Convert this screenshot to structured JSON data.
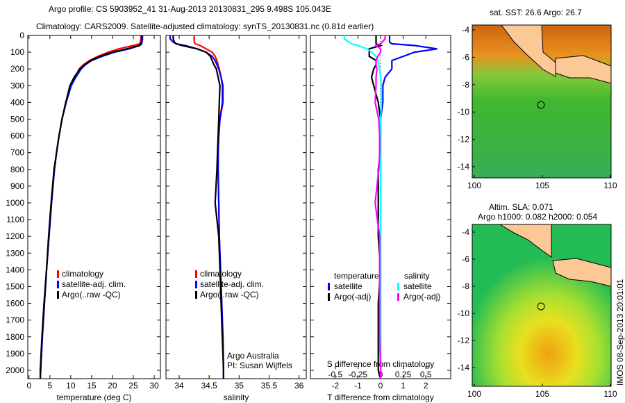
{
  "title_line1": "Argo profile: CS 5903952_41 31-Aug-2013 20130831_295 9.498S 105.043E",
  "title_line2": "Climatology: CARS2009. Satellite-adjusted climatology: synTS_20130831.nc (0.81d earlier)",
  "chart_data": [
    {
      "type": "line",
      "xlabel": "temperature (deg C)",
      "xlim": [
        -0.3,
        31.5
      ],
      "xticks": [
        "0",
        "5",
        "10",
        "15",
        "20",
        "25",
        "30"
      ],
      "ylim": [
        0,
        2050
      ],
      "yticks": [
        "0",
        "100",
        "200",
        "300",
        "400",
        "500",
        "600",
        "700",
        "800",
        "900",
        "1000",
        "1100",
        "1200",
        "1300",
        "1400",
        "1500",
        "1600",
        "1700",
        "1800",
        "1900",
        "2000"
      ],
      "depth": [
        0,
        20,
        40,
        50,
        60,
        80,
        100,
        125,
        150,
        175,
        200,
        250,
        300,
        400,
        500,
        600,
        700,
        800,
        1000,
        1200,
        1400,
        1600,
        1800,
        2000,
        2050
      ],
      "series": [
        {
          "name": "climatology",
          "color": "#ff0000",
          "values": [
            26.8,
            26.8,
            26.7,
            26.5,
            25,
            21.5,
            19,
            16.5,
            14.5,
            13,
            12,
            11,
            10,
            8.8,
            7.9,
            7.2,
            6.6,
            6.1,
            5.4,
            4.8,
            4.2,
            3.7,
            3.2,
            2.8,
            2.7
          ]
        },
        {
          "name": "satellite-adj. clim.",
          "color": "#0000ff",
          "values": [
            27.2,
            27.2,
            27.1,
            27,
            26.5,
            24,
            20.5,
            17.5,
            15,
            13.5,
            12.5,
            11.2,
            10.1,
            8.9,
            7.9,
            7.2,
            6.6,
            6.1,
            5.4,
            4.8,
            4.2,
            3.7,
            3.2,
            2.8,
            2.7
          ]
        },
        {
          "name": "Argo(..raw -QC)",
          "color": "#000000",
          "values": [
            27,
            27,
            26.9,
            26.8,
            26.5,
            23.5,
            20,
            17,
            14.8,
            13.3,
            12.2,
            10.8,
            9.8,
            8.8,
            7.9,
            7.2,
            6.6,
            6.0,
            5.3,
            4.7,
            4.2,
            3.6,
            3.1,
            2.7,
            2.7
          ]
        }
      ]
    },
    {
      "type": "line",
      "xlabel": "salinity",
      "xlim": [
        33.78,
        36.12
      ],
      "xticks": [
        "34",
        "34.5",
        "35",
        "35.5",
        "36"
      ],
      "ylim": [
        0,
        2050
      ],
      "annotation": [
        "Argo Australia",
        "PI: Susan Wijffels"
      ],
      "series": [
        {
          "name": "climatology",
          "color": "#ff0000",
          "values": [
            34.25,
            34.25,
            34.25,
            34.27,
            34.35,
            34.45,
            34.55,
            34.6,
            34.63,
            34.65,
            34.67,
            34.7,
            34.72,
            34.72,
            34.68,
            34.66,
            34.65,
            34.65,
            34.66,
            34.67,
            34.69,
            34.71,
            34.73,
            34.74,
            34.74
          ]
        },
        {
          "name": "satellite-adj. clim.",
          "color": "#0000ff",
          "values": [
            33.85,
            33.85,
            33.9,
            33.95,
            34.1,
            34.3,
            34.45,
            34.55,
            34.6,
            34.63,
            34.66,
            34.7,
            34.73,
            34.73,
            34.68,
            34.66,
            34.65,
            34.65,
            34.66,
            34.67,
            34.69,
            34.71,
            34.73,
            34.74,
            34.74
          ]
        },
        {
          "name": "Argo(..raw -QC)",
          "color": "#000000",
          "values": [
            33.9,
            33.9,
            33.92,
            33.95,
            34.05,
            34.3,
            34.45,
            34.52,
            34.55,
            34.58,
            34.62,
            34.65,
            34.68,
            34.67,
            34.66,
            34.65,
            34.64,
            34.63,
            34.6,
            34.66,
            34.68,
            34.7,
            34.72,
            34.74,
            34.74
          ]
        }
      ]
    },
    {
      "type": "line",
      "xlabel": "T difference from climatology",
      "xlabel2": "S difference from climatology",
      "xlim": [
        -3.1,
        3.1
      ],
      "xticks": [
        "-2",
        "-1",
        "0",
        "1",
        "2"
      ],
      "xticks2": [
        "-0.5",
        "-0.25",
        "0",
        "0.25",
        "0.5"
      ],
      "ylim": [
        0,
        2050
      ],
      "legend_headers": [
        "temperature",
        "salinity"
      ],
      "series": [
        {
          "name": "satellite",
          "group": "temperature",
          "color": "#0000ff",
          "values": [
            0.4,
            0.4,
            0.4,
            0.5,
            1.5,
            2.5,
            1.5,
            1.0,
            0.5,
            0.5,
            0.5,
            0.2,
            0.1,
            0.1,
            0,
            0,
            0,
            0,
            0,
            0,
            0,
            0,
            0,
            0,
            0
          ]
        },
        {
          "name": "Argo(-adj)",
          "group": "temperature",
          "color": "#000000",
          "values": [
            -0.2,
            -0.2,
            -0.2,
            -0.2,
            0,
            -0.5,
            -0.5,
            -0.5,
            -0.2,
            -0.2,
            -0.3,
            -0.4,
            -0.3,
            -0.1,
            0,
            0,
            0,
            -0.1,
            -0.1,
            -0.1,
            0,
            -0.1,
            -0.1,
            -0.1,
            0
          ]
        },
        {
          "name": "satellite",
          "group": "salinity",
          "color": "#00ffff",
          "values": [
            -0.4,
            -0.4,
            -0.35,
            -0.32,
            -0.25,
            -0.15,
            -0.1,
            -0.05,
            -0.03,
            -0.02,
            -0.01,
            0,
            0.01,
            0.01,
            0,
            0,
            0,
            0,
            0,
            0,
            0,
            0,
            0,
            0,
            0
          ]
        },
        {
          "name": "Argo(-adj)",
          "group": "salinity",
          "color": "#ff00ff",
          "values": [
            0.05,
            0.05,
            0.02,
            0,
            -0.05,
            0,
            0,
            -0.03,
            -0.05,
            -0.05,
            -0.04,
            -0.05,
            -0.05,
            -0.06,
            -0.02,
            -0.01,
            -0.01,
            -0.02,
            -0.06,
            -0.01,
            -0.01,
            -0.01,
            -0.01,
            0,
            0
          ]
        }
      ]
    }
  ],
  "maps": {
    "sst_title": "sat. SST: 26.6  Argo: 26.7",
    "sla_title1": "Altim. SLA: 0.071",
    "sla_title2": "Argo h1000: 0.082  h2000: 0.054",
    "lon_ticks": [
      "100",
      "105",
      "110"
    ],
    "lat_ticks": [
      "-4",
      "-6",
      "-8",
      "-10",
      "-12",
      "-14"
    ],
    "float_lon": 105.043,
    "float_lat": -9.498
  },
  "footer_stamp": "IMOS 08-Sep-2013 20:01:01"
}
